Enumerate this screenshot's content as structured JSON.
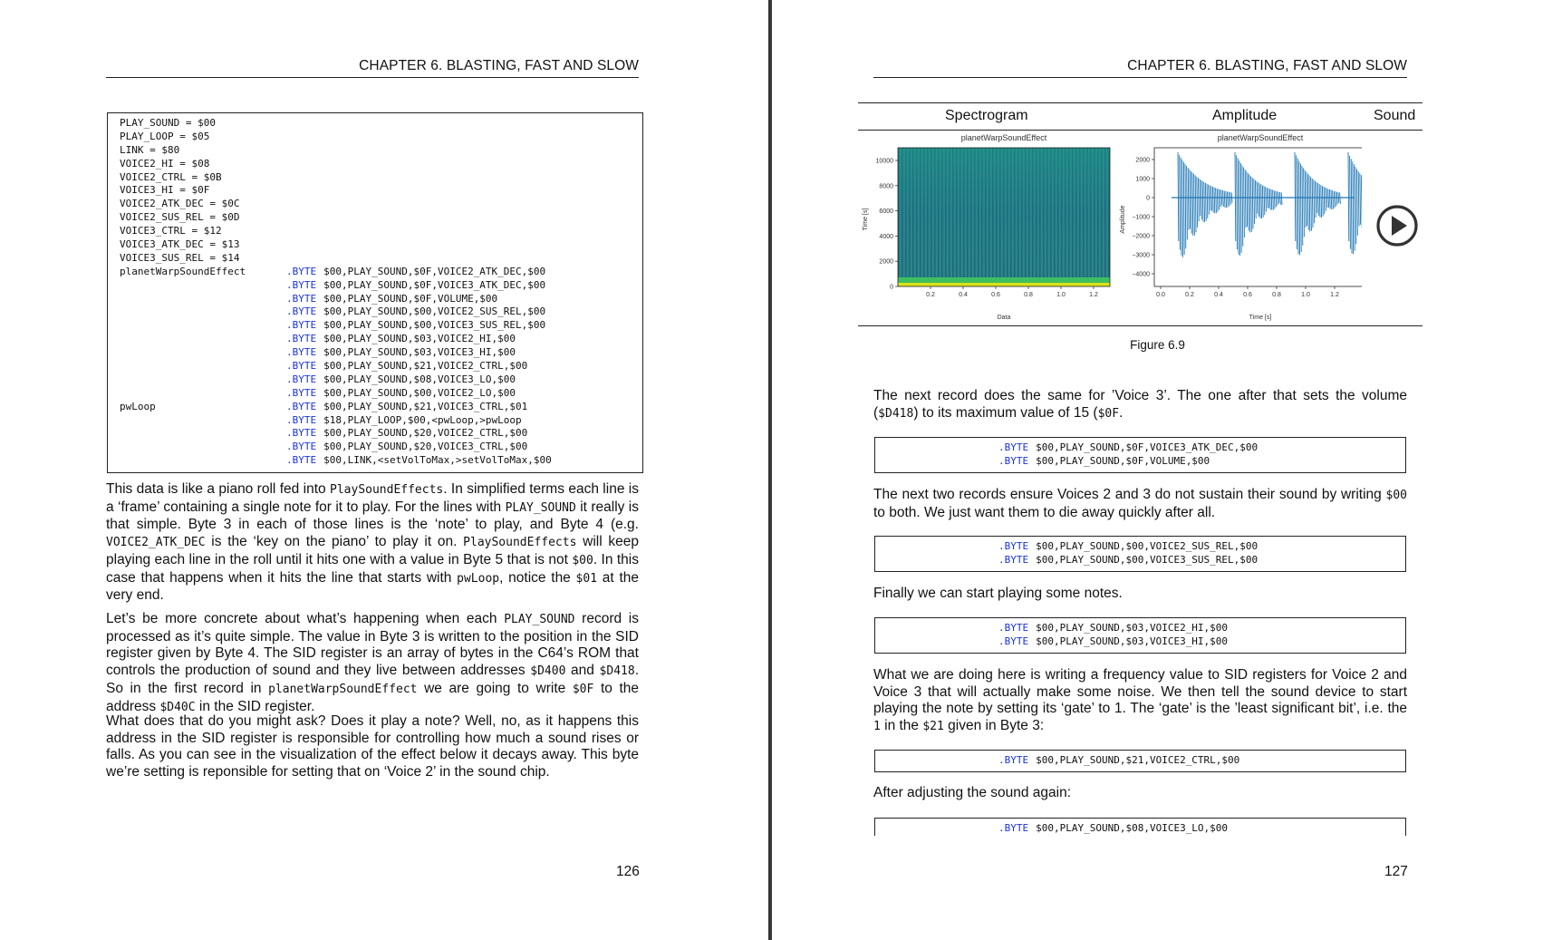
{
  "left_page": {
    "running_head": "CHAPTER 6.  BLASTING, FAST AND SLOW",
    "page_number": "126",
    "code_listing": [
      {
        "label": "PLAY_SOUND = $00",
        "kw": "",
        "args": ""
      },
      {
        "label": "PLAY_LOOP = $05",
        "kw": "",
        "args": ""
      },
      {
        "label": "LINK = $80",
        "kw": "",
        "args": ""
      },
      {
        "label": "VOICE2_HI = $08",
        "kw": "",
        "args": ""
      },
      {
        "label": "VOICE2_CTRL = $0B",
        "kw": "",
        "args": ""
      },
      {
        "label": "VOICE3_HI = $0F",
        "kw": "",
        "args": ""
      },
      {
        "label": "VOICE2_ATK_DEC = $0C",
        "kw": "",
        "args": ""
      },
      {
        "label": "VOICE2_SUS_REL = $0D",
        "kw": "",
        "args": ""
      },
      {
        "label": "VOICE3_CTRL = $12",
        "kw": "",
        "args": ""
      },
      {
        "label": "VOICE3_ATK_DEC = $13",
        "kw": "",
        "args": ""
      },
      {
        "label": "VOICE3_SUS_REL = $14",
        "kw": "",
        "args": ""
      },
      {
        "label": "planetWarpSoundEffect",
        "kw": ".BYTE",
        "args": "$00,PLAY_SOUND,$0F,VOICE2_ATK_DEC,$00"
      },
      {
        "label": "",
        "kw": ".BYTE",
        "args": "$00,PLAY_SOUND,$0F,VOICE3_ATK_DEC,$00"
      },
      {
        "label": "",
        "kw": ".BYTE",
        "args": "$00,PLAY_SOUND,$0F,VOLUME,$00"
      },
      {
        "label": "",
        "kw": ".BYTE",
        "args": "$00,PLAY_SOUND,$00,VOICE2_SUS_REL,$00"
      },
      {
        "label": "",
        "kw": ".BYTE",
        "args": "$00,PLAY_SOUND,$00,VOICE3_SUS_REL,$00"
      },
      {
        "label": "",
        "kw": ".BYTE",
        "args": "$00,PLAY_SOUND,$03,VOICE2_HI,$00"
      },
      {
        "label": "",
        "kw": ".BYTE",
        "args": "$00,PLAY_SOUND,$03,VOICE3_HI,$00"
      },
      {
        "label": "",
        "kw": ".BYTE",
        "args": "$00,PLAY_SOUND,$21,VOICE2_CTRL,$00"
      },
      {
        "label": "",
        "kw": ".BYTE",
        "args": "$00,PLAY_SOUND,$08,VOICE3_LO,$00"
      },
      {
        "label": "",
        "kw": ".BYTE",
        "args": "$00,PLAY_SOUND,$00,VOICE2_LO,$00"
      },
      {
        "label": "pwLoop",
        "kw": ".BYTE",
        "args": "$00,PLAY_SOUND,$21,VOICE3_CTRL,$01"
      },
      {
        "label": "",
        "kw": ".BYTE",
        "args": "$18,PLAY_LOOP,$00,<pwLoop,>pwLoop"
      },
      {
        "label": "",
        "kw": ".BYTE",
        "args": "$00,PLAY_SOUND,$20,VOICE2_CTRL,$00"
      },
      {
        "label": "",
        "kw": ".BYTE",
        "args": "$00,PLAY_SOUND,$20,VOICE3_CTRL,$00"
      },
      {
        "label": "",
        "kw": ".BYTE",
        "args": "$00,LINK,<setVolToMax,>setVolToMax,$00"
      }
    ],
    "paragraphs": [
      [
        {
          "t": "This data is like a piano roll fed into "
        },
        {
          "c": "PlaySoundEffects"
        },
        {
          "t": ". In simplified terms each line is a ‘frame’ containing a single note for it to play. For the lines with "
        },
        {
          "c": "PLAY_SOUND"
        },
        {
          "t": " it really is that simple. Byte 3 in each of those lines is the ‘note’ to play, and Byte 4 (e.g. "
        },
        {
          "c": "VOICE2_ATK_DEC"
        },
        {
          "t": " is the ‘key on the piano’ to play it on. "
        },
        {
          "c": "PlaySoundEffects"
        },
        {
          "t": " will keep playing each line in the roll until it hits one with a value in Byte 5 that is not "
        },
        {
          "c": "$00"
        },
        {
          "t": ". In this case that happens when it hits the line that starts with "
        },
        {
          "c": "pwLoop"
        },
        {
          "t": ", notice the "
        },
        {
          "c": "$01"
        },
        {
          "t": " at the very end."
        }
      ],
      [
        {
          "t": "Let’s be more concrete about what’s happening when each "
        },
        {
          "c": "PLAY_SOUND"
        },
        {
          "t": " record is processed as it’s quite simple. The value in Byte 3 is written to the position in the SID register given by Byte 4. The SID register is an array of bytes in the C64’s ROM that controls the production of sound and they live between addresses "
        },
        {
          "c": "$D400"
        },
        {
          "t": " and "
        },
        {
          "c": "$D418"
        },
        {
          "t": ". So in the first record in "
        },
        {
          "c": "planetWarpSoundEffect"
        },
        {
          "t": " we are going to write "
        },
        {
          "c": "$0F"
        },
        {
          "t": " to the address "
        },
        {
          "c": "$D40C"
        },
        {
          "t": " in the SID register."
        }
      ],
      [
        {
          "t": "What does that do you might ask? Does it play a note? Well, no, as it happens this address in the SID register is responsible for controlling how much a sound rises or falls. As you can see in the visualization of the effect below it decays away. This byte we’re setting is reponsible for setting that on ‘Voice 2’ in the sound chip."
        }
      ]
    ]
  },
  "right_page": {
    "running_head": "CHAPTER 6.  BLASTING, FAST AND SLOW",
    "page_number": "127",
    "figure": {
      "col_spectrogram": "Spectrogram",
      "col_amplitude": "Amplitude",
      "col_sound": "Sound",
      "caption": "Figure 6.9",
      "spectrogram": {
        "title": "planetWarpSoundEffect",
        "xlabel": "Data",
        "ylabel": "Time [s]",
        "yticks": [
          "0",
          "2000",
          "4000",
          "6000",
          "8000",
          "10000"
        ],
        "xticks": [
          "0.2",
          "0.4",
          "0.6",
          "0.8",
          "1.0",
          "1.2"
        ]
      },
      "amplitude": {
        "title": "planetWarpSoundEffect",
        "xlabel": "Time [s]",
        "ylabel": "Amplitude",
        "yticks": [
          "2000",
          "1000",
          "0",
          "−1000",
          "−2000",
          "−3000",
          "−4000"
        ],
        "xticks": [
          "0.0",
          "0.2",
          "0.4",
          "0.6",
          "0.8",
          "1.0",
          "1.2"
        ]
      }
    },
    "blocks": [
      {
        "type": "p",
        "top": 428,
        "spans": [
          {
            "t": "The next record does the same for ’Voice 3’. The one after that sets the volume ("
          },
          {
            "c": "$D418"
          },
          {
            "t": ") to its maximum value of 15 ("
          },
          {
            "c": "$0F"
          },
          {
            "t": "."
          }
        ]
      },
      {
        "type": "code",
        "top": 482,
        "lines": [
          {
            "kw": ".BYTE",
            "args": "$00,PLAY_SOUND,$0F,VOICE3_ATK_DEC,$00"
          },
          {
            "kw": ".BYTE",
            "args": "$00,PLAY_SOUND,$0F,VOLUME,$00"
          }
        ]
      },
      {
        "type": "p",
        "top": 537,
        "spans": [
          {
            "t": "The next two records ensure Voices 2 and 3 do not sustain their sound by writing "
          },
          {
            "c": "$00"
          },
          {
            "t": " to both. We just want them to die away quickly after all."
          }
        ]
      },
      {
        "type": "code",
        "top": 591,
        "lines": [
          {
            "kw": ".BYTE",
            "args": "$00,PLAY_SOUND,$00,VOICE2_SUS_REL,$00"
          },
          {
            "kw": ".BYTE",
            "args": "$00,PLAY_SOUND,$00,VOICE3_SUS_REL,$00"
          }
        ]
      },
      {
        "type": "p",
        "top": 646,
        "spans": [
          {
            "t": "Finally we can start playing some notes."
          }
        ]
      },
      {
        "type": "code",
        "top": 681,
        "lines": [
          {
            "kw": ".BYTE",
            "args": "$00,PLAY_SOUND,$03,VOICE2_HI,$00"
          },
          {
            "kw": ".BYTE",
            "args": "$00,PLAY_SOUND,$03,VOICE3_HI,$00"
          }
        ]
      },
      {
        "type": "p",
        "top": 736,
        "spans": [
          {
            "t": "What we are doing here is writing a frequency value to SID registers for Voice 2 and Voice 3 that will actually make some noise. We then tell the sound device to start playing the note by setting its ‘gate’ to 1. The ‘gate’ is the ’least significant bit’, i.e. the "
          },
          {
            "c": "1"
          },
          {
            "t": " in the "
          },
          {
            "c": "$21"
          },
          {
            "t": " given in Byte 3:"
          }
        ]
      },
      {
        "type": "code",
        "top": 827,
        "lines": [
          {
            "kw": ".BYTE",
            "args": "$00,PLAY_SOUND,$21,VOICE2_CTRL,$00"
          }
        ]
      },
      {
        "type": "p",
        "top": 866,
        "spans": [
          {
            "t": "After adjusting the sound again:"
          }
        ]
      },
      {
        "type": "code",
        "top": 902,
        "cut": true,
        "lines": [
          {
            "kw": ".BYTE",
            "args": "$00,PLAY_SOUND,$08,VOICE3_LO,$00"
          }
        ]
      }
    ]
  }
}
